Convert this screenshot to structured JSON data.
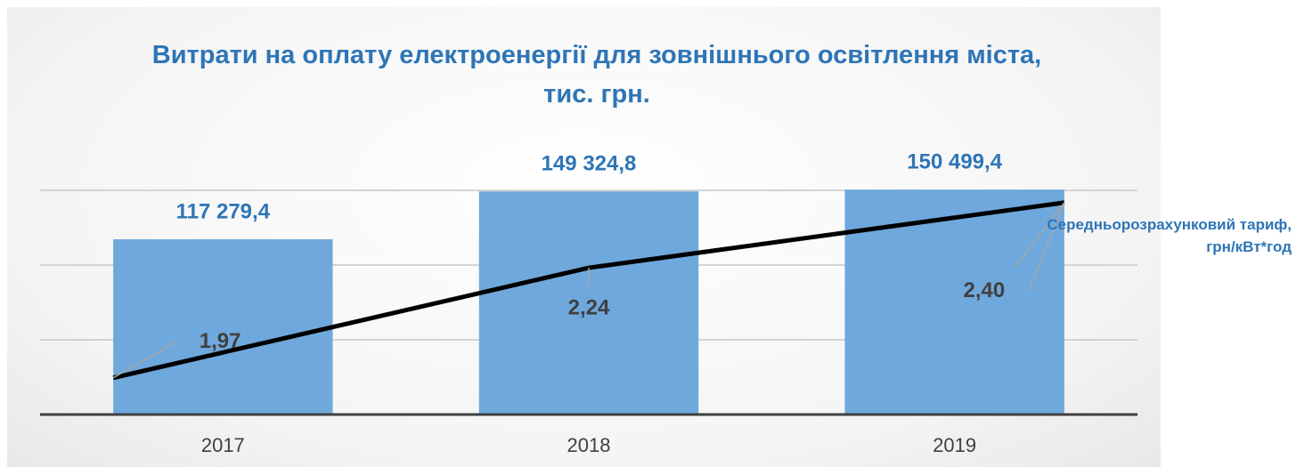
{
  "chart_data": {
    "type": "bar",
    "title": "Витрати на оплату електроенергії для зовнішнього освітлення міста, тис. грн.",
    "categories": [
      "2017",
      "2018",
      "2019"
    ],
    "ylim": [
      0,
      150000
    ],
    "yticks": [
      0,
      50000,
      100000,
      150000
    ],
    "grid": true,
    "y2lim": [
      1.88,
      2.43
    ],
    "series": [
      {
        "type": "bar",
        "color": "#6fa8dc",
        "values": [
          117279.4,
          149324.8,
          150499.4
        ],
        "value_labels": [
          "117 279,4",
          "149 324,8",
          "150 499,4"
        ]
      },
      {
        "type": "line",
        "name": "Середньорозрахунковий тариф, грн/кВт*год",
        "axis": "y2",
        "color": "#000000",
        "values": [
          1.97,
          2.24,
          2.4
        ],
        "value_labels": [
          "1,97",
          "2,24",
          "2,40"
        ]
      }
    ]
  }
}
